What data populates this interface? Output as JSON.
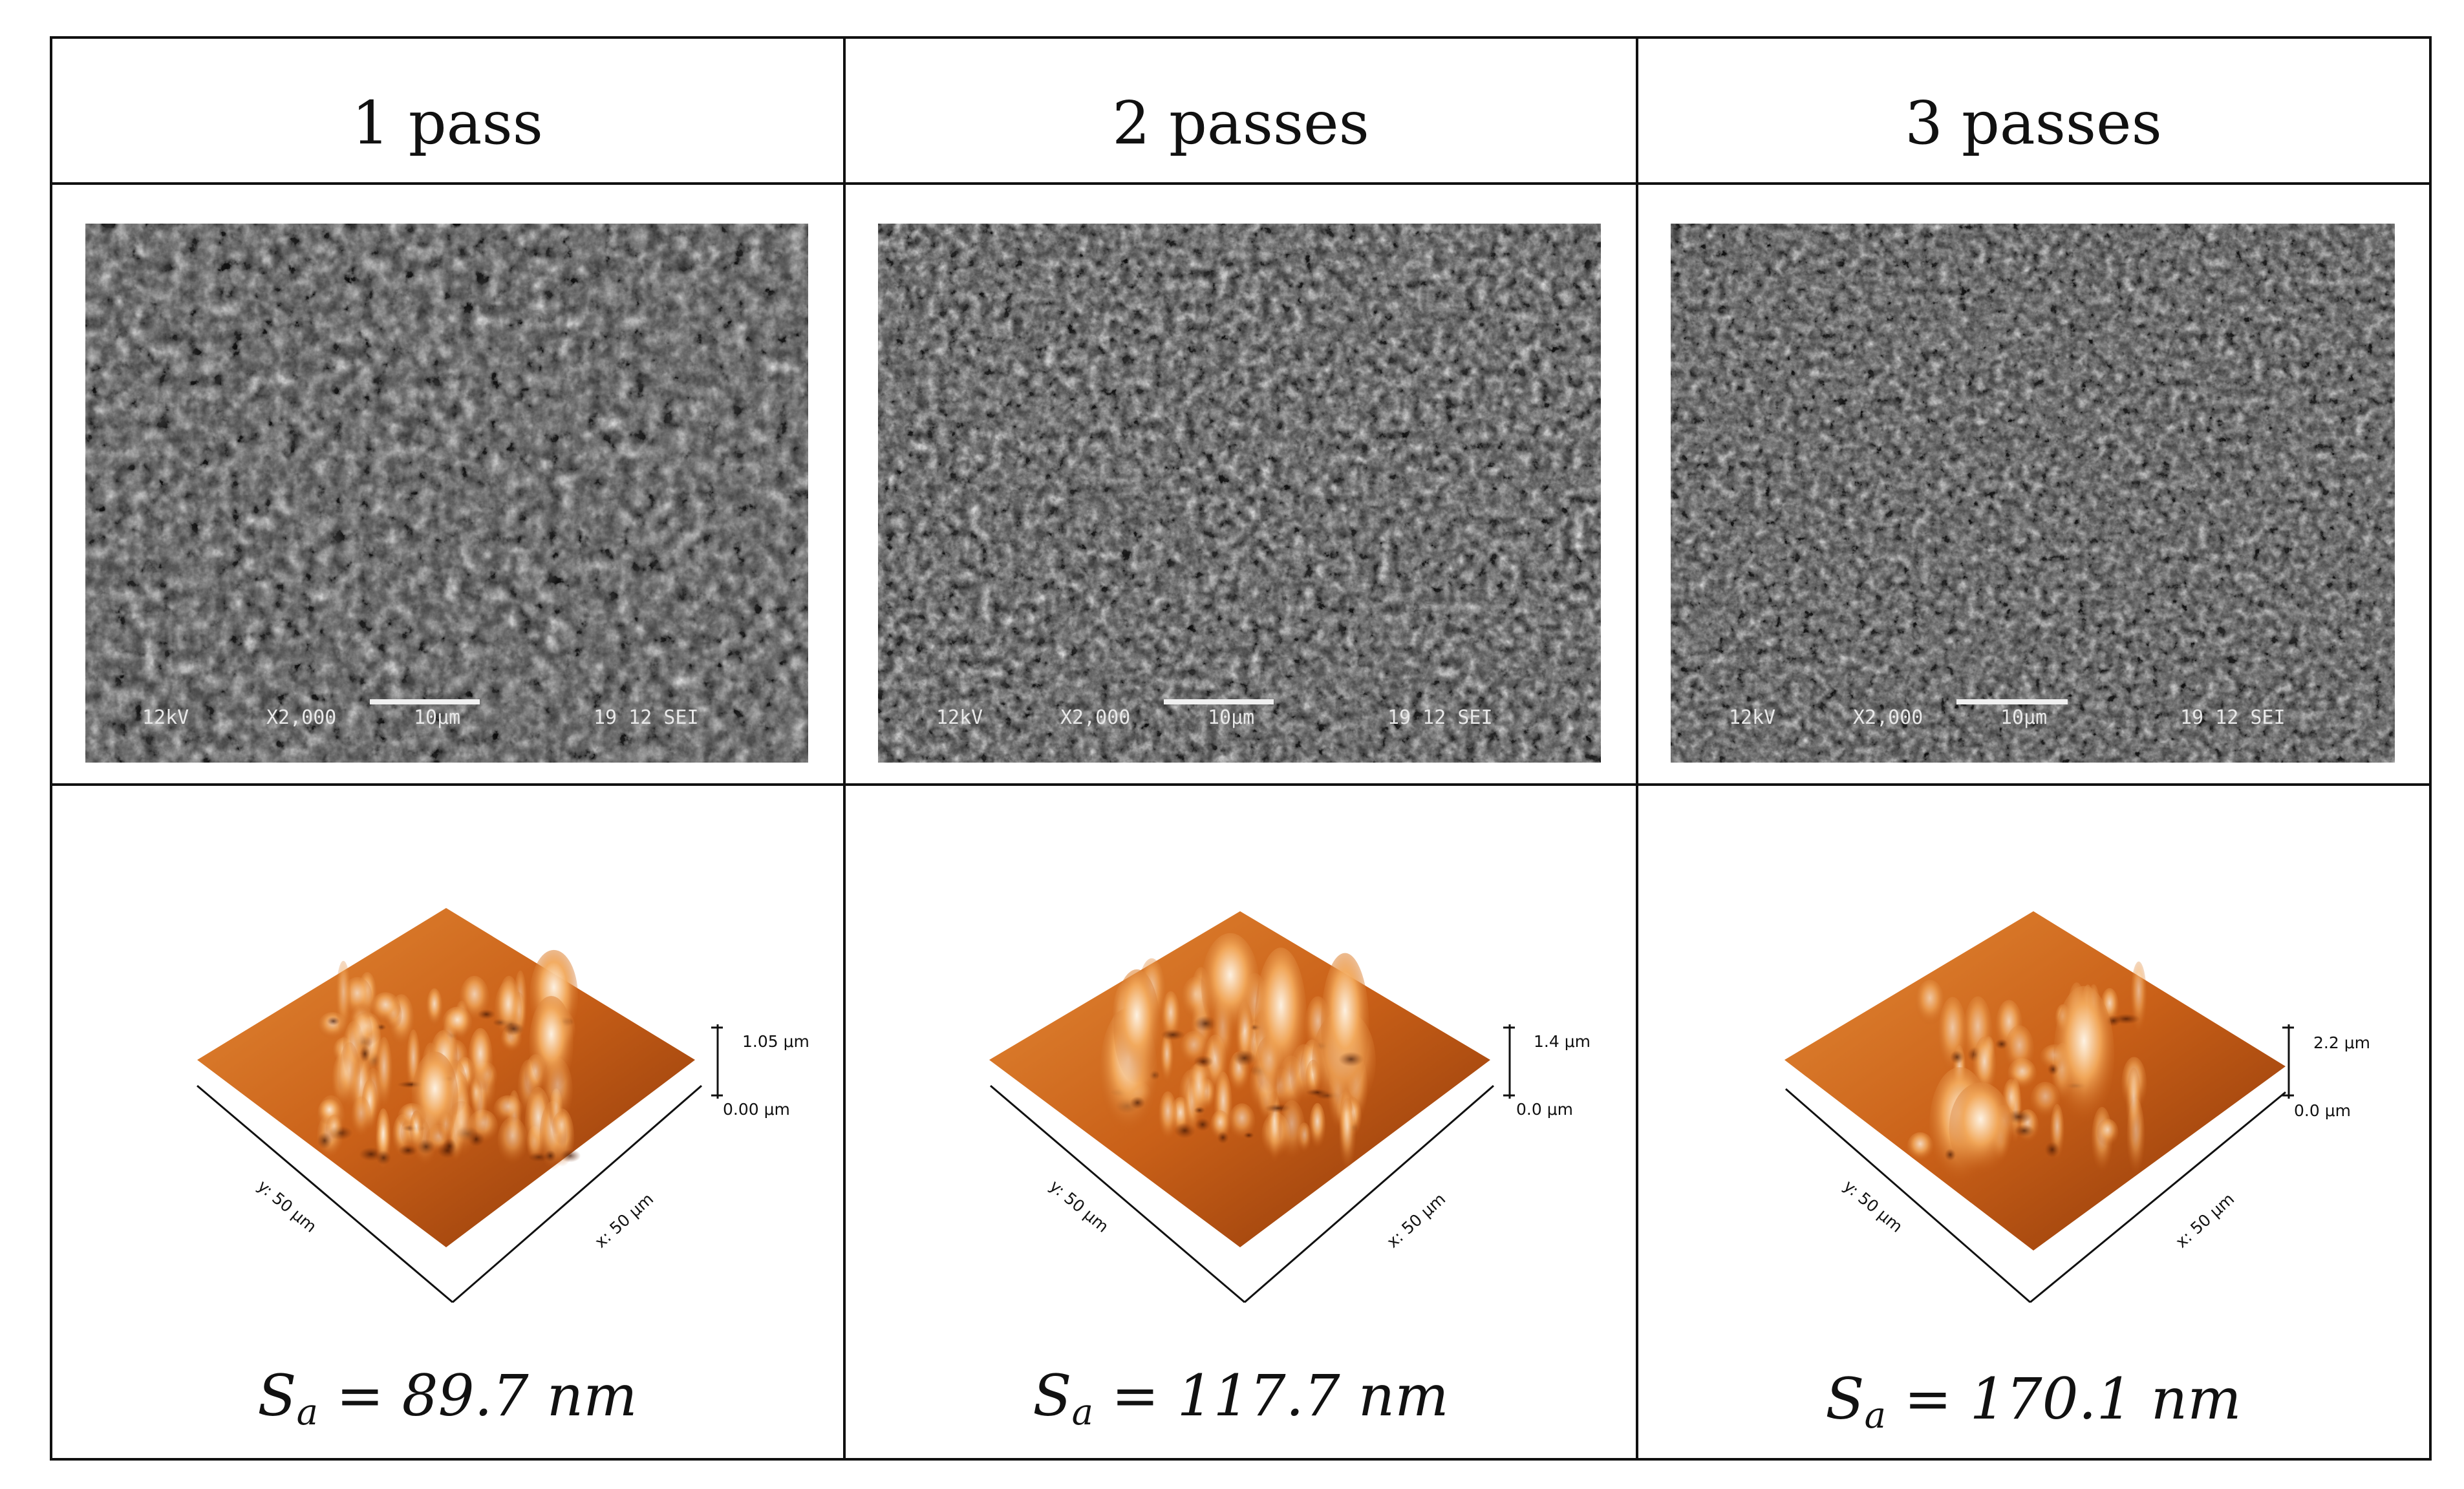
{
  "table": {
    "columns": [
      {
        "header": "1 pass",
        "sem": {
          "voltage": "12kV",
          "magnification": "X2,000",
          "scale_bar": "10μm",
          "code": "19 12 SEI"
        },
        "afm": {
          "z_max": "1.05 μm",
          "z_min": "0.00 μm",
          "x_axis": "x: 50 μm",
          "y_axis": "y: 50 μm"
        },
        "sa": {
          "symbol": "S",
          "sub": "a",
          "rest": " = 89.7 nm"
        }
      },
      {
        "header": "2 passes",
        "sem": {
          "voltage": "12kV",
          "magnification": "X2,000",
          "scale_bar": "10μm",
          "code": "19 12 SEI"
        },
        "afm": {
          "z_max": "1.4 μm",
          "z_min": "0.0 μm",
          "x_axis": "x: 50 μm",
          "y_axis": "y: 50 μm"
        },
        "sa": {
          "symbol": "S",
          "sub": "a",
          "rest": " = 117.7 nm"
        }
      },
      {
        "header": "3 passes",
        "sem": {
          "voltage": "12kV",
          "magnification": "X2,000",
          "scale_bar": "10μm",
          "code": "19 12 SEI"
        },
        "afm": {
          "z_max": "2.2 μm",
          "z_min": "0.0 μm",
          "x_axis": "x: 50 μm",
          "y_axis": "y: 50 μm"
        },
        "sa": {
          "symbol": "S",
          "sub": "a",
          "rest": " = 170.1 nm"
        }
      }
    ]
  },
  "colors": {
    "sem_background": "#3a3a3a",
    "afm_dark": "#7a2e06",
    "afm_mid": "#c25a14",
    "afm_light": "#f0a050",
    "afm_peak": "#fff3e0"
  }
}
